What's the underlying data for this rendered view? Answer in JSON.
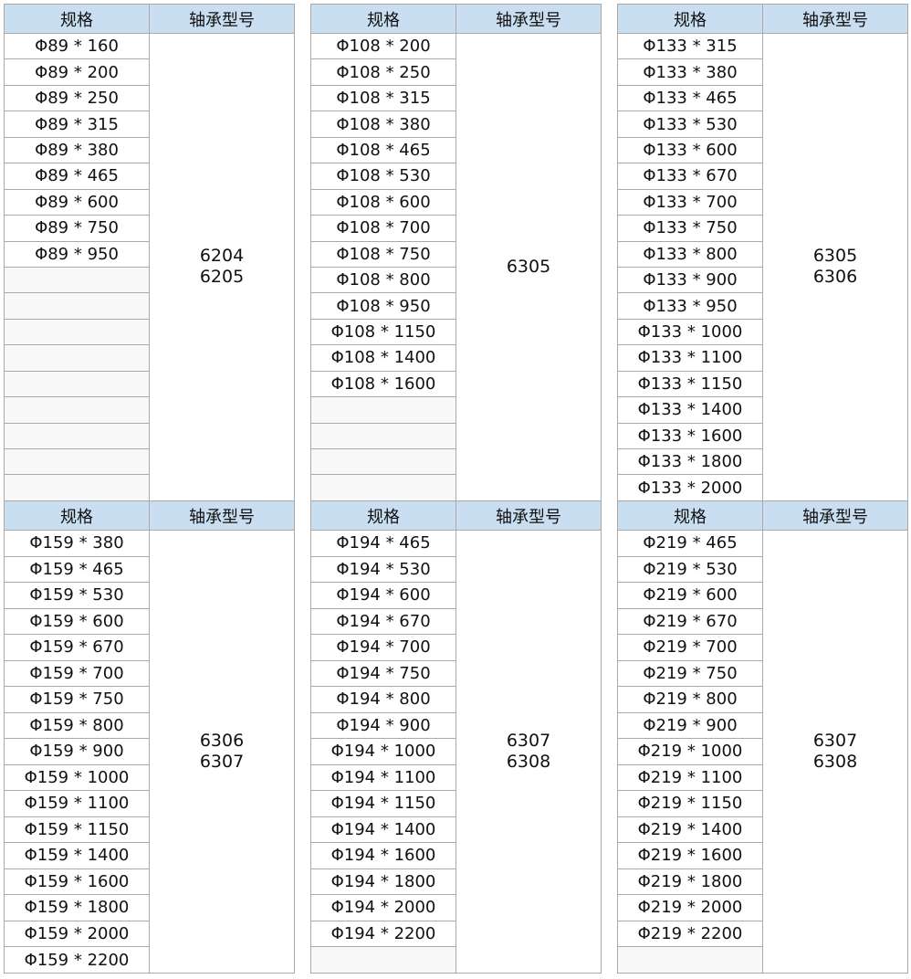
{
  "headers": {
    "spec": "规格",
    "model": "轴承型号"
  },
  "tables": [
    {
      "specs": [
        "Φ89 * 160",
        "Φ89 * 200",
        "Φ89 * 250",
        "Φ89 * 315",
        "Φ89 * 380",
        "Φ89 * 465",
        "Φ89 * 600",
        "Φ89 * 750",
        "Φ89 * 950",
        "",
        "",
        "",
        "",
        "",
        "",
        "",
        "",
        ""
      ],
      "models": [
        "6204",
        "6205"
      ]
    },
    {
      "specs": [
        "Φ108 * 200",
        "Φ108 * 250",
        "Φ108 * 315",
        "Φ108 * 380",
        "Φ108 * 465",
        "Φ108 * 530",
        "Φ108 * 600",
        "Φ108 * 700",
        "Φ108 * 750",
        "Φ108 * 800",
        "Φ108 * 950",
        "Φ108 * 1150",
        "Φ108 * 1400",
        "Φ108 * 1600",
        "",
        "",
        "",
        ""
      ],
      "models": [
        "6305"
      ]
    },
    {
      "specs": [
        "Φ133 * 315",
        "Φ133 * 380",
        "Φ133 * 465",
        "Φ133 * 530",
        "Φ133 * 600",
        "Φ133 * 670",
        "Φ133 * 700",
        "Φ133 * 750",
        "Φ133 * 800",
        "Φ133 * 900",
        "Φ133 * 950",
        "Φ133 * 1000",
        "Φ133 * 1100",
        "Φ133 * 1150",
        "Φ133 * 1400",
        "Φ133 * 1600",
        "Φ133 * 1800",
        "Φ133 * 2000"
      ],
      "models": [
        "6305",
        "6306"
      ]
    },
    {
      "specs": [
        "Φ159 * 380",
        "Φ159 * 465",
        "Φ159 * 530",
        "Φ159 * 600",
        "Φ159 * 670",
        "Φ159 * 700",
        "Φ159 * 750",
        "Φ159 * 800",
        "Φ159 * 900",
        "Φ159 * 1000",
        "Φ159 * 1100",
        "Φ159 * 1150",
        "Φ159 * 1400",
        "Φ159 * 1600",
        "Φ159 * 1800",
        "Φ159 * 2000",
        "Φ159 * 2200"
      ],
      "models": [
        "6306",
        "6307"
      ]
    },
    {
      "specs": [
        "Φ194 * 465",
        "Φ194 * 530",
        "Φ194 * 600",
        "Φ194 * 670",
        "Φ194 * 700",
        "Φ194 * 750",
        "Φ194 * 800",
        "Φ194 * 900",
        "Φ194 * 1000",
        "Φ194 * 1100",
        "Φ194 * 1150",
        "Φ194 * 1400",
        "Φ194 * 1600",
        "Φ194 * 1800",
        "Φ194 * 2000",
        "Φ194 * 2200",
        ""
      ],
      "models": [
        "6307",
        "6308"
      ]
    },
    {
      "specs": [
        "Φ219 * 465",
        "Φ219 * 530",
        "Φ219 * 600",
        "Φ219 * 670",
        "Φ219 * 700",
        "Φ219 * 750",
        "Φ219 * 800",
        "Φ219 * 900",
        "Φ219 * 1000",
        "Φ219 * 1100",
        "Φ219 * 1150",
        "Φ219 * 1400",
        "Φ219 * 1600",
        "Φ219 * 1800",
        "Φ219 * 2000",
        "Φ219 * 2200",
        ""
      ],
      "models": [
        "6307",
        "6308"
      ]
    }
  ]
}
